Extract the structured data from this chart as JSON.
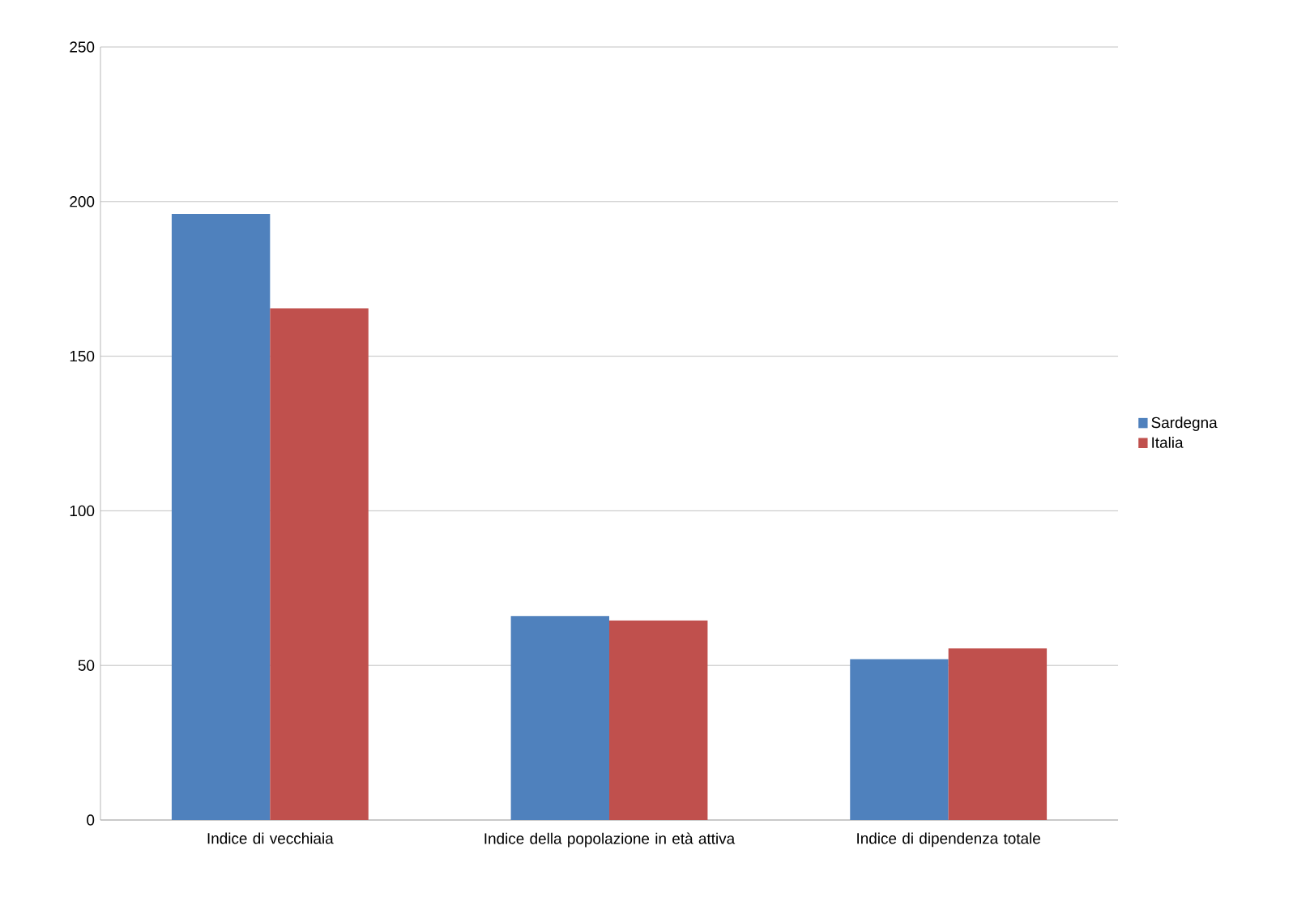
{
  "chart_data": {
    "type": "bar",
    "categories": [
      "Indice di vecchiaia",
      "Indice della popolazione in età attiva",
      "Indice di dipendenza totale"
    ],
    "series": [
      {
        "name": "Sardegna",
        "color": "#4f81bd",
        "values": [
          196,
          66,
          52
        ]
      },
      {
        "name": "Italia",
        "color": "#c0504d",
        "values": [
          165.5,
          64.5,
          55.5
        ]
      }
    ],
    "ylim": [
      0,
      250
    ],
    "yticks": [
      0,
      50,
      100,
      150,
      200,
      250
    ],
    "grid": "y",
    "legend": "right"
  }
}
